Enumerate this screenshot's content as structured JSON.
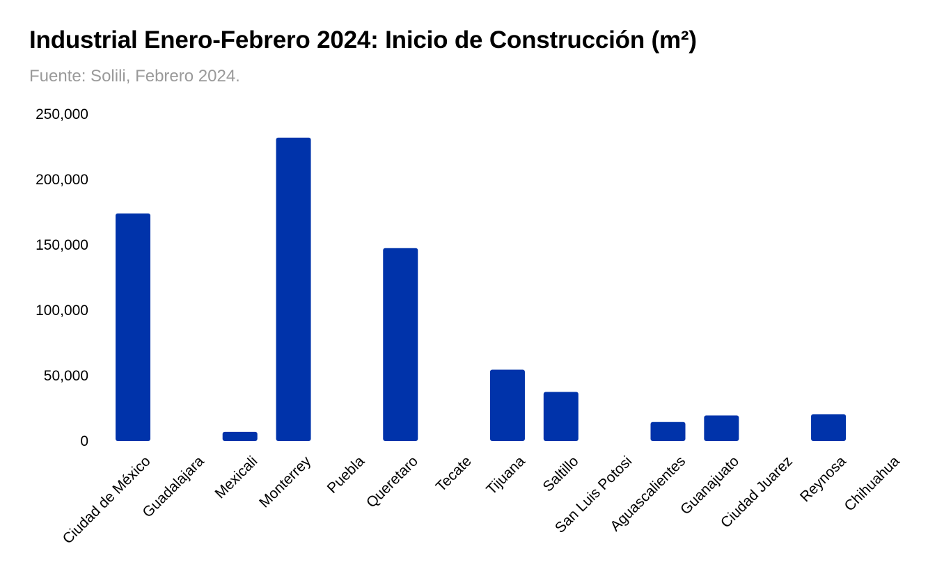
{
  "chart_data": {
    "type": "bar",
    "title": "Industrial Enero-Febrero 2024: Inicio de Construcción (m²)",
    "subtitle": "Fuente: Solili, Febrero 2024.",
    "xlabel": "",
    "ylabel": "",
    "categories": [
      "Ciudad de México",
      "Guadalajara",
      "Mexicali",
      "Monterrey",
      "Puebla",
      "Queretaro",
      "Tecate",
      "Tijuana",
      "Saltillo",
      "San Luis Potosi",
      "Aguascalientes",
      "Guanajuato",
      "Ciudad Juarez",
      "Reynosa",
      "Chihuahua"
    ],
    "values": [
      174000,
      0,
      7000,
      232000,
      0,
      147500,
      0,
      54500,
      37500,
      0,
      14500,
      19500,
      0,
      20500,
      0
    ],
    "ylim": [
      0,
      250000
    ],
    "yticks": [
      0,
      50000,
      100000,
      150000,
      200000,
      250000
    ],
    "ytick_labels": [
      "0",
      "50,000",
      "100,000",
      "150,000",
      "200,000",
      "250,000"
    ],
    "grid": false,
    "legend": "none",
    "bar_color": "#0033AA"
  }
}
